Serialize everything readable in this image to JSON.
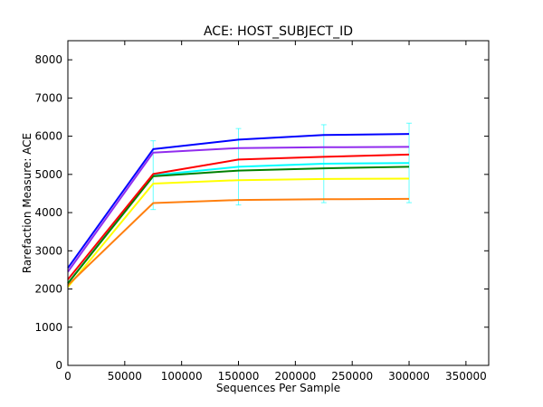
{
  "chart_data": {
    "type": "line",
    "title": "ACE: HOST_SUBJECT_ID",
    "xlabel": "Sequences Per Sample",
    "ylabel": "Rarefaction Measure: ACE",
    "xlim": [
      0,
      370000
    ],
    "ylim": [
      0,
      8500
    ],
    "x_ticks": [
      0,
      50000,
      100000,
      150000,
      200000,
      250000,
      300000,
      350000
    ],
    "x_tick_labels": [
      "0",
      "50000",
      "100000",
      "150000",
      "200000",
      "250000",
      "300000",
      "350000"
    ],
    "y_ticks": [
      0,
      1000,
      2000,
      3000,
      4000,
      5000,
      6000,
      7000,
      8000
    ],
    "y_tick_labels": [
      "0",
      "1000",
      "2000",
      "3000",
      "4000",
      "5000",
      "6000",
      "7000",
      "8000"
    ],
    "grid": false,
    "x": [
      10,
      75000,
      150000,
      225000,
      300000
    ],
    "series": [
      {
        "color": "#00ffff",
        "values": [
          2150,
          4980,
          5200,
          5280,
          5300
        ],
        "errors": [
          0,
          900,
          1000,
          1020,
          1040
        ]
      },
      {
        "color": "#ffff00",
        "values": [
          2050,
          4760,
          4850,
          4880,
          4890
        ]
      },
      {
        "color": "#ff7f0e",
        "values": [
          2100,
          4250,
          4330,
          4350,
          4360
        ]
      },
      {
        "color": "#008000",
        "values": [
          2150,
          4950,
          5100,
          5160,
          5200
        ]
      },
      {
        "color": "#ff0000",
        "values": [
          2250,
          5010,
          5390,
          5460,
          5520
        ]
      },
      {
        "color": "#912cee",
        "values": [
          2450,
          5570,
          5690,
          5710,
          5720
        ]
      },
      {
        "color": "#0000ff",
        "values": [
          2550,
          5660,
          5910,
          6030,
          6060
        ]
      }
    ]
  }
}
